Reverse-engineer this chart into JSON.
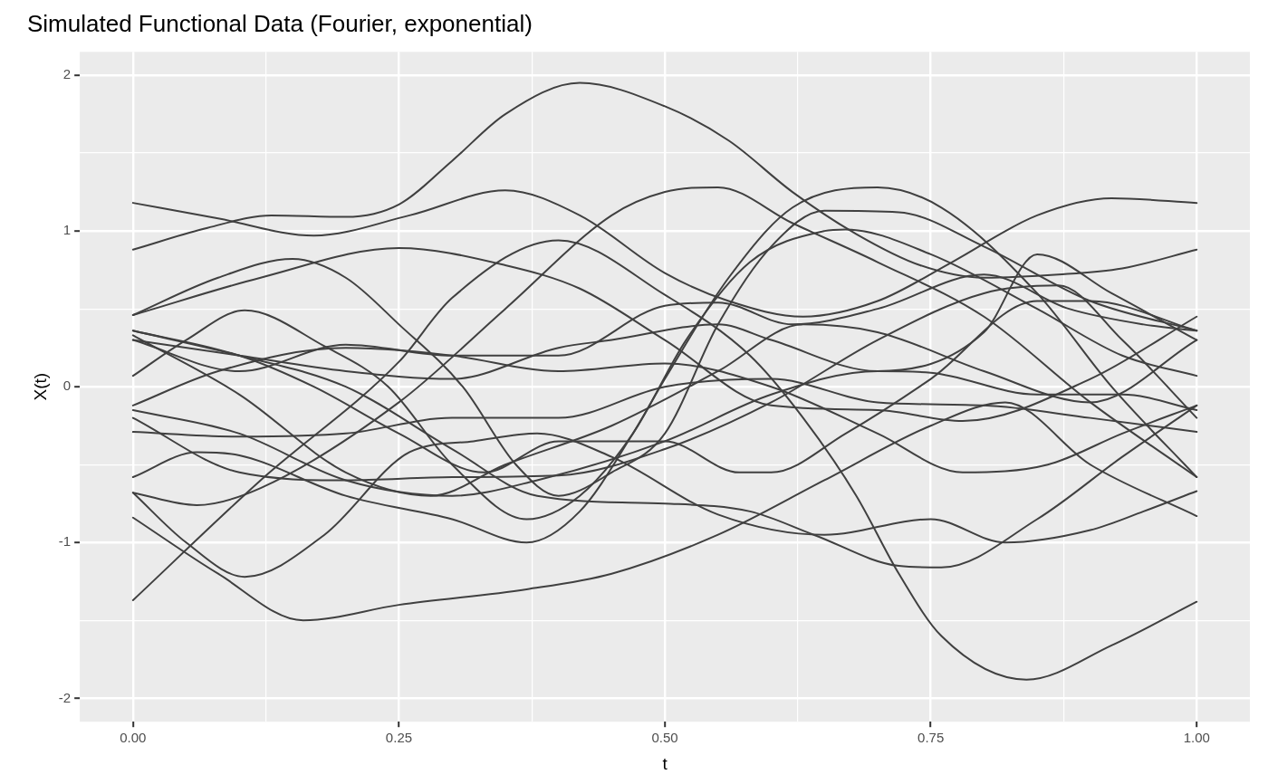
{
  "chart_data": {
    "type": "line",
    "title": "Simulated Functional Data (Fourier, exponential)",
    "xlabel": "t",
    "ylabel": "X(t)",
    "xlim": [
      -0.05,
      1.05
    ],
    "ylim": [
      -2.15,
      2.15
    ],
    "xticks": [
      {
        "value": 0,
        "label": "0.00"
      },
      {
        "value": 0.125,
        "label": null
      },
      {
        "value": 0.25,
        "label": "0.25"
      },
      {
        "value": 0.375,
        "label": null
      },
      {
        "value": 0.5,
        "label": "0.50"
      },
      {
        "value": 0.625,
        "label": null
      },
      {
        "value": 0.75,
        "label": "0.75"
      },
      {
        "value": 0.875,
        "label": null
      },
      {
        "value": 1,
        "label": "1.00"
      }
    ],
    "yticks": [
      -2,
      {
        "value": -1.5,
        "label": null
      },
      -1,
      {
        "value": -0.5,
        "label": null
      },
      0,
      {
        "value": 0.5,
        "label": null
      },
      1,
      {
        "value": 1.5,
        "label": null
      },
      2
    ],
    "grid": true,
    "marker": "none",
    "series": [
      {
        "color": "#404040",
        "x": [
          0,
          0.08,
          0.17,
          0.26,
          0.35,
          0.42,
          0.5,
          0.56,
          0.63,
          0.7,
          0.77,
          0.85,
          0.92,
          1
        ],
        "values": [
          1.18,
          1.08,
          0.97,
          1.1,
          1.26,
          1.1,
          0.73,
          0.55,
          0.45,
          0.55,
          0.8,
          1.1,
          1.21,
          1.18
        ]
      },
      {
        "color": "#404040",
        "x": [
          0,
          0.07,
          0.13,
          0.2,
          0.25,
          0.3,
          0.35,
          0.42,
          0.5,
          0.56,
          0.62,
          0.68,
          0.74,
          0.8,
          0.87,
          0.93,
          1
        ],
        "values": [
          0.88,
          1.02,
          1.1,
          1.09,
          1.17,
          1.45,
          1.75,
          1.95,
          1.8,
          1.58,
          1.25,
          0.98,
          0.78,
          0.7,
          0.72,
          0.76,
          0.88
        ]
      },
      {
        "color": "#404040",
        "x": [
          0,
          0.12,
          0.25,
          0.35,
          0.42,
          0.5,
          0.6,
          0.7,
          0.78,
          0.9,
          1
        ],
        "values": [
          0.46,
          0.7,
          0.89,
          0.78,
          0.63,
          0.3,
          -0.12,
          -0.15,
          -0.22,
          0.05,
          0.45
        ]
      },
      {
        "color": "#404040",
        "x": [
          0,
          0.08,
          0.15,
          0.2,
          0.25,
          0.31,
          0.36,
          0.4,
          0.45,
          0.5,
          0.55,
          0.6,
          0.65,
          0.72,
          0.8,
          0.9,
          1
        ],
        "values": [
          0.46,
          0.7,
          0.82,
          0.7,
          0.4,
          0.0,
          -0.5,
          -0.7,
          -0.55,
          -0.3,
          0.4,
          0.9,
          1.13,
          1.12,
          0.9,
          0.55,
          0.36
        ]
      },
      {
        "color": "#404040",
        "x": [
          0,
          0.12,
          0.25,
          0.3,
          0.4,
          0.5,
          0.58,
          0.63,
          0.68,
          0.72,
          0.76,
          0.84,
          0.92,
          1
        ],
        "values": [
          -1.37,
          -0.6,
          0.16,
          0.57,
          0.94,
          0.59,
          0.2,
          -0.2,
          -0.7,
          -1.2,
          -1.6,
          -1.88,
          -1.66,
          -1.38
        ]
      },
      {
        "color": "#404040",
        "x": [
          0,
          0.1,
          0.2,
          0.3,
          0.38,
          0.5,
          0.58,
          0.64,
          0.72,
          0.76,
          0.85,
          0.93,
          1
        ],
        "values": [
          0.36,
          0.2,
          0.0,
          -0.4,
          -0.7,
          -0.75,
          -0.8,
          -0.95,
          -1.15,
          -1.16,
          -0.85,
          -0.45,
          -0.12
        ]
      },
      {
        "color": "#404040",
        "x": [
          0,
          0.05,
          0.105,
          0.18,
          0.24,
          0.3,
          0.37,
          0.42,
          0.47,
          0.52,
          0.58,
          0.65,
          0.67,
          0.75,
          0.85,
          0.93,
          1
        ],
        "values": [
          0.07,
          0.3,
          0.49,
          0.26,
          0.0,
          -0.5,
          -0.85,
          -0.7,
          -0.3,
          0.3,
          0.8,
          1.0,
          1.01,
          0.85,
          0.5,
          0.2,
          0.07
        ]
      },
      {
        "color": "#404040",
        "x": [
          0,
          0.06,
          0.1,
          0.2,
          0.3,
          0.37,
          0.42,
          0.47,
          0.5,
          0.56,
          0.62,
          0.7,
          0.76,
          0.85,
          0.92,
          1
        ],
        "values": [
          -0.58,
          -0.42,
          -0.44,
          -0.7,
          -0.85,
          -1.0,
          -0.8,
          -0.3,
          0.05,
          0.7,
          1.15,
          1.28,
          1.15,
          0.6,
          0.0,
          -0.58
        ]
      },
      {
        "color": "#404040",
        "x": [
          0,
          0.05,
          0.105,
          0.18,
          0.26,
          0.32,
          0.38,
          0.45,
          0.55,
          0.65,
          0.75,
          0.82,
          0.9,
          0.95,
          1
        ],
        "values": [
          -0.68,
          -1.0,
          -1.22,
          -0.95,
          -0.42,
          -0.35,
          -0.3,
          -0.45,
          -0.82,
          -0.95,
          -0.85,
          -1.0,
          -0.92,
          -0.8,
          -0.67
        ]
      },
      {
        "color": "#404040",
        "x": [
          0,
          0.06,
          0.12,
          0.25,
          0.35,
          0.45,
          0.5,
          0.55,
          0.62,
          0.7,
          0.8,
          0.9,
          1
        ],
        "values": [
          -0.68,
          -0.76,
          -0.65,
          -0.1,
          0.5,
          1.1,
          1.25,
          1.28,
          1.05,
          0.8,
          0.45,
          -0.1,
          -0.58
        ]
      },
      {
        "color": "#404040",
        "x": [
          0,
          0.08,
          0.16,
          0.25,
          0.37,
          0.45,
          0.55,
          0.65,
          0.75,
          0.82,
          0.9,
          1
        ],
        "values": [
          -0.84,
          -1.2,
          -1.5,
          -1.4,
          -1.3,
          -1.2,
          -0.95,
          -0.6,
          -0.25,
          -0.1,
          -0.5,
          -0.83
        ]
      },
      {
        "color": "#404040",
        "x": [
          0,
          0.1,
          0.2,
          0.3,
          0.4,
          0.5,
          0.6,
          0.7,
          0.8,
          0.9,
          1
        ],
        "values": [
          -0.29,
          -0.32,
          -0.3,
          -0.2,
          -0.2,
          0.0,
          0.05,
          -0.1,
          -0.12,
          -0.2,
          -0.29
        ]
      },
      {
        "color": "#404040",
        "x": [
          0,
          0.1,
          0.2,
          0.3,
          0.4,
          0.5,
          0.6,
          0.7,
          0.8,
          0.87,
          0.93,
          1
        ],
        "values": [
          -0.2,
          -0.55,
          -0.6,
          -0.58,
          -0.57,
          -0.4,
          -0.1,
          0.3,
          0.6,
          0.65,
          0.3,
          -0.2
        ]
      },
      {
        "color": "#404040",
        "x": [
          0,
          0.1,
          0.2,
          0.3,
          0.38,
          0.5,
          0.6,
          0.7,
          0.75,
          0.85,
          0.93,
          1
        ],
        "values": [
          -0.15,
          -0.3,
          -0.6,
          -0.7,
          -0.6,
          -0.35,
          -0.05,
          0.1,
          0.09,
          -0.05,
          -0.05,
          -0.15
        ]
      },
      {
        "color": "#404040",
        "x": [
          0,
          0.08,
          0.2,
          0.3,
          0.4,
          0.5,
          0.6,
          0.7,
          0.78,
          0.86,
          0.93,
          1
        ],
        "values": [
          -0.12,
          0.1,
          0.25,
          0.2,
          0.1,
          0.15,
          0.0,
          -0.3,
          -0.55,
          -0.5,
          -0.3,
          -0.12
        ]
      },
      {
        "color": "#404040",
        "x": [
          0,
          0.1,
          0.17,
          0.25,
          0.33,
          0.4,
          0.5,
          0.57,
          0.6,
          0.67,
          0.75,
          0.85,
          0.9,
          1
        ],
        "values": [
          0.36,
          0.2,
          0.0,
          -0.3,
          -0.55,
          -0.35,
          -0.35,
          -0.55,
          -0.55,
          -0.3,
          0.05,
          0.55,
          0.55,
          0.36
        ]
      },
      {
        "color": "#404040",
        "x": [
          0,
          0.1,
          0.2,
          0.28,
          0.35,
          0.45,
          0.55,
          0.63,
          0.7,
          0.8,
          0.9,
          1
        ],
        "values": [
          0.33,
          -0.05,
          -0.55,
          -0.7,
          -0.5,
          -0.25,
          0.1,
          0.4,
          0.35,
          0.1,
          -0.1,
          0.3
        ]
      },
      {
        "color": "#404040",
        "x": [
          0,
          0.1,
          0.2,
          0.3,
          0.4,
          0.45,
          0.55,
          0.6,
          0.7,
          0.8,
          0.85,
          0.92,
          1
        ],
        "values": [
          0.3,
          0.2,
          0.1,
          0.05,
          0.25,
          0.3,
          0.4,
          0.3,
          0.1,
          0.35,
          0.85,
          0.6,
          0.3
        ]
      },
      {
        "color": "#404040",
        "x": [
          0,
          0.1,
          0.2,
          0.3,
          0.4,
          0.5,
          0.55,
          0.62,
          0.7,
          0.8,
          0.88,
          0.95,
          1
        ],
        "values": [
          0.3,
          0.1,
          0.27,
          0.2,
          0.2,
          0.52,
          0.54,
          0.4,
          0.5,
          0.72,
          0.5,
          0.4,
          0.36
        ]
      }
    ]
  }
}
